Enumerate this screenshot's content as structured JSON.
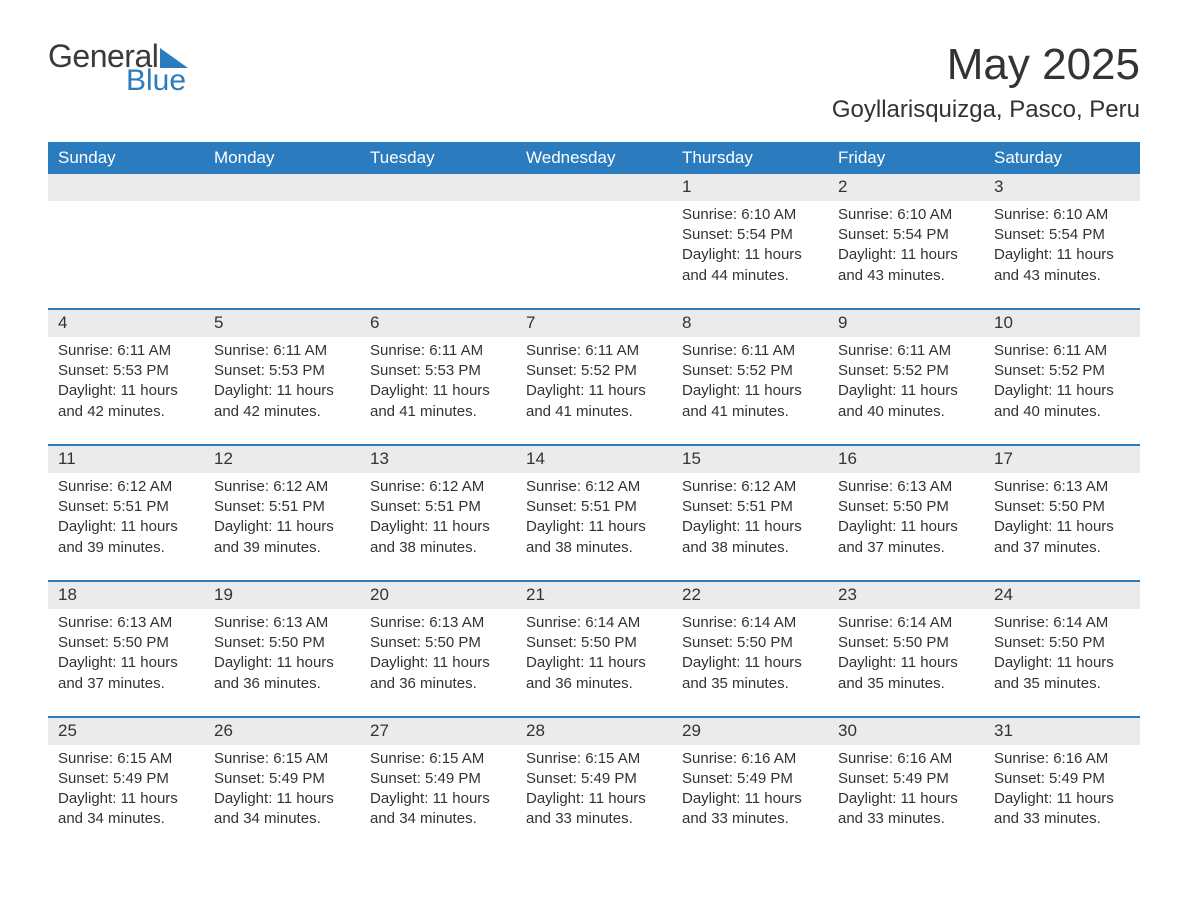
{
  "logo": {
    "word1": "General",
    "word2": "Blue",
    "word1_color": "#3a3a3a",
    "word2_color": "#2b7bbf"
  },
  "title": {
    "month": "May 2025",
    "location": "Goyllarisquizga, Pasco, Peru"
  },
  "colors": {
    "header_bg": "#2b7bbf",
    "header_fg": "#ffffff",
    "daynum_bg": "#ebebeb",
    "text": "#333333",
    "rule": "#2b7bbf",
    "page_bg": "#ffffff"
  },
  "typography": {
    "title_fontsize": 44,
    "location_fontsize": 24,
    "header_fontsize": 17,
    "body_fontsize": 15
  },
  "day_headers": [
    "Sunday",
    "Monday",
    "Tuesday",
    "Wednesday",
    "Thursday",
    "Friday",
    "Saturday"
  ],
  "weeks": [
    [
      null,
      null,
      null,
      null,
      {
        "n": "1",
        "sunrise": "6:10 AM",
        "sunset": "5:54 PM",
        "daylight": "11 hours and 44 minutes."
      },
      {
        "n": "2",
        "sunrise": "6:10 AM",
        "sunset": "5:54 PM",
        "daylight": "11 hours and 43 minutes."
      },
      {
        "n": "3",
        "sunrise": "6:10 AM",
        "sunset": "5:54 PM",
        "daylight": "11 hours and 43 minutes."
      }
    ],
    [
      {
        "n": "4",
        "sunrise": "6:11 AM",
        "sunset": "5:53 PM",
        "daylight": "11 hours and 42 minutes."
      },
      {
        "n": "5",
        "sunrise": "6:11 AM",
        "sunset": "5:53 PM",
        "daylight": "11 hours and 42 minutes."
      },
      {
        "n": "6",
        "sunrise": "6:11 AM",
        "sunset": "5:53 PM",
        "daylight": "11 hours and 41 minutes."
      },
      {
        "n": "7",
        "sunrise": "6:11 AM",
        "sunset": "5:52 PM",
        "daylight": "11 hours and 41 minutes."
      },
      {
        "n": "8",
        "sunrise": "6:11 AM",
        "sunset": "5:52 PM",
        "daylight": "11 hours and 41 minutes."
      },
      {
        "n": "9",
        "sunrise": "6:11 AM",
        "sunset": "5:52 PM",
        "daylight": "11 hours and 40 minutes."
      },
      {
        "n": "10",
        "sunrise": "6:11 AM",
        "sunset": "5:52 PM",
        "daylight": "11 hours and 40 minutes."
      }
    ],
    [
      {
        "n": "11",
        "sunrise": "6:12 AM",
        "sunset": "5:51 PM",
        "daylight": "11 hours and 39 minutes."
      },
      {
        "n": "12",
        "sunrise": "6:12 AM",
        "sunset": "5:51 PM",
        "daylight": "11 hours and 39 minutes."
      },
      {
        "n": "13",
        "sunrise": "6:12 AM",
        "sunset": "5:51 PM",
        "daylight": "11 hours and 38 minutes."
      },
      {
        "n": "14",
        "sunrise": "6:12 AM",
        "sunset": "5:51 PM",
        "daylight": "11 hours and 38 minutes."
      },
      {
        "n": "15",
        "sunrise": "6:12 AM",
        "sunset": "5:51 PM",
        "daylight": "11 hours and 38 minutes."
      },
      {
        "n": "16",
        "sunrise": "6:13 AM",
        "sunset": "5:50 PM",
        "daylight": "11 hours and 37 minutes."
      },
      {
        "n": "17",
        "sunrise": "6:13 AM",
        "sunset": "5:50 PM",
        "daylight": "11 hours and 37 minutes."
      }
    ],
    [
      {
        "n": "18",
        "sunrise": "6:13 AM",
        "sunset": "5:50 PM",
        "daylight": "11 hours and 37 minutes."
      },
      {
        "n": "19",
        "sunrise": "6:13 AM",
        "sunset": "5:50 PM",
        "daylight": "11 hours and 36 minutes."
      },
      {
        "n": "20",
        "sunrise": "6:13 AM",
        "sunset": "5:50 PM",
        "daylight": "11 hours and 36 minutes."
      },
      {
        "n": "21",
        "sunrise": "6:14 AM",
        "sunset": "5:50 PM",
        "daylight": "11 hours and 36 minutes."
      },
      {
        "n": "22",
        "sunrise": "6:14 AM",
        "sunset": "5:50 PM",
        "daylight": "11 hours and 35 minutes."
      },
      {
        "n": "23",
        "sunrise": "6:14 AM",
        "sunset": "5:50 PM",
        "daylight": "11 hours and 35 minutes."
      },
      {
        "n": "24",
        "sunrise": "6:14 AM",
        "sunset": "5:50 PM",
        "daylight": "11 hours and 35 minutes."
      }
    ],
    [
      {
        "n": "25",
        "sunrise": "6:15 AM",
        "sunset": "5:49 PM",
        "daylight": "11 hours and 34 minutes."
      },
      {
        "n": "26",
        "sunrise": "6:15 AM",
        "sunset": "5:49 PM",
        "daylight": "11 hours and 34 minutes."
      },
      {
        "n": "27",
        "sunrise": "6:15 AM",
        "sunset": "5:49 PM",
        "daylight": "11 hours and 34 minutes."
      },
      {
        "n": "28",
        "sunrise": "6:15 AM",
        "sunset": "5:49 PM",
        "daylight": "11 hours and 33 minutes."
      },
      {
        "n": "29",
        "sunrise": "6:16 AM",
        "sunset": "5:49 PM",
        "daylight": "11 hours and 33 minutes."
      },
      {
        "n": "30",
        "sunrise": "6:16 AM",
        "sunset": "5:49 PM",
        "daylight": "11 hours and 33 minutes."
      },
      {
        "n": "31",
        "sunrise": "6:16 AM",
        "sunset": "5:49 PM",
        "daylight": "11 hours and 33 minutes."
      }
    ]
  ],
  "labels": {
    "sunrise": "Sunrise:",
    "sunset": "Sunset:",
    "daylight": "Daylight:"
  }
}
